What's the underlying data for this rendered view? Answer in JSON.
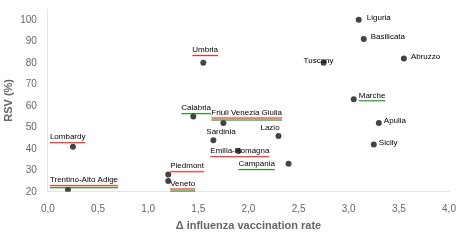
{
  "chart_data": {
    "type": "scatter",
    "x": [
      0.2,
      0.25,
      1.2,
      1.2,
      1.45,
      1.55,
      1.65,
      1.75,
      1.9,
      2.3,
      2.4,
      2.75,
      3.05,
      3.1,
      3.15,
      3.3,
      3.25,
      3.55
    ],
    "values": [
      21,
      41,
      28,
      25,
      55,
      80,
      44,
      52,
      39,
      46,
      33,
      80,
      63,
      100,
      91,
      52,
      42,
      82
    ],
    "color": "#444444",
    "xlabel": "Δ influenza vaccination rate",
    "ylabel": "RSV (%)",
    "xlim": [
      0.0,
      4.0
    ],
    "ylim": [
      20,
      105
    ],
    "xticks": [
      {
        "value": 0.0,
        "label": "0,0"
      },
      {
        "value": 0.5,
        "label": "0,5"
      },
      {
        "value": 1.0,
        "label": "1,0"
      },
      {
        "value": 1.5,
        "label": "1,5"
      },
      {
        "value": 2.0,
        "label": "2,0"
      },
      {
        "value": 2.5,
        "label": "2,5"
      },
      {
        "value": 3.0,
        "label": "3,0"
      },
      {
        "value": 3.5,
        "label": "3,5"
      },
      {
        "value": 4.0,
        "label": "4,0"
      }
    ],
    "yticks": [
      20,
      30,
      40,
      50,
      60,
      70,
      80,
      90,
      100
    ],
    "grid": false,
    "annotations": [
      {
        "text": "Trentino-Alto Adige",
        "x": 0.02,
        "y": 23.5,
        "colors": [
          "red",
          "green"
        ]
      },
      {
        "text": "Lombardy",
        "x": 0.02,
        "y": 43.5,
        "colors": [
          "red"
        ]
      },
      {
        "text": "Piedmont",
        "x": 1.22,
        "y": 30,
        "colors": [
          "red"
        ]
      },
      {
        "text": "Veneto",
        "x": 1.22,
        "y": 22,
        "colors": [
          "red",
          "green"
        ]
      },
      {
        "text": "Calabria",
        "x": 1.33,
        "y": 57,
        "colors": [
          "green"
        ]
      },
      {
        "text": "Umbria",
        "x": 1.44,
        "y": 84,
        "colors": [
          "red"
        ]
      },
      {
        "text": "Sardinia",
        "x": 1.58,
        "y": 46
      },
      {
        "text": "Friuli Venezia Giulia",
        "x": 1.63,
        "y": 55,
        "colors": [
          "red",
          "green"
        ]
      },
      {
        "text": "Emilia-Romagna",
        "x": 1.62,
        "y": 37,
        "colors": [
          "red"
        ]
      },
      {
        "text": "Lazio",
        "x": 2.12,
        "y": 48
      },
      {
        "text": "Campania",
        "x": 1.9,
        "y": 31,
        "colors": [
          "green"
        ]
      },
      {
        "text": "Tuscany",
        "x": 2.55,
        "y": 79
      },
      {
        "text": "Marche",
        "x": 3.1,
        "y": 63,
        "colors": [
          "green"
        ]
      },
      {
        "text": "Liguria",
        "x": 3.18,
        "y": 99
      },
      {
        "text": "Basilicata",
        "x": 3.22,
        "y": 90
      },
      {
        "text": "Apulia",
        "x": 3.35,
        "y": 51
      },
      {
        "text": "Sicily",
        "x": 3.3,
        "y": 41
      },
      {
        "text": "Abruzzo",
        "x": 3.62,
        "y": 81
      }
    ]
  }
}
